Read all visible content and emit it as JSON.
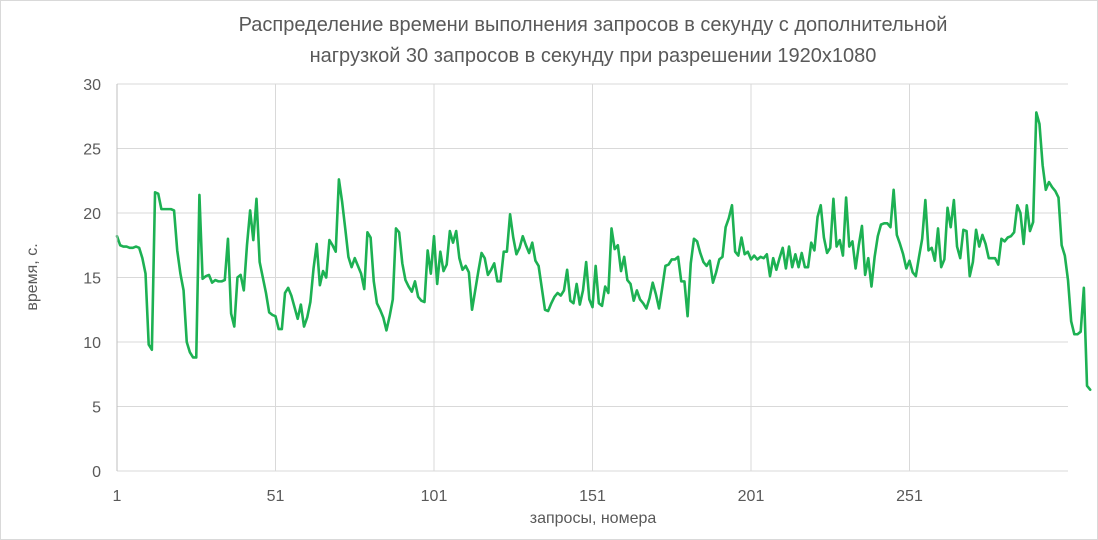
{
  "chart_data": {
    "type": "line",
    "title_line1": "Распределение времени выполнения запросов в секунду с дополнительной",
    "title_line2": "нагрузкой 30 запросов в секунду при разрешении 1920x1080",
    "xlabel": "запросы, номера",
    "ylabel": "время, с.",
    "xlim": [
      1,
      301
    ],
    "ylim": [
      0,
      30
    ],
    "x_ticks": [
      1,
      51,
      101,
      151,
      201,
      251
    ],
    "y_ticks": [
      0,
      5,
      10,
      15,
      20,
      25,
      30
    ],
    "grid": true,
    "colors": {
      "series": "#1db153",
      "grid": "#d9d9d9",
      "text": "#595959"
    },
    "series": [
      {
        "values": [
          18.2,
          17.5,
          17.4,
          17.4,
          17.3,
          17.3,
          17.4,
          17.3,
          16.5,
          15.3,
          9.8,
          9.4,
          21.6,
          21.5,
          20.3,
          20.3,
          20.3,
          20.3,
          20.2,
          17.1,
          15.3,
          14.0,
          10.0,
          9.2,
          8.8,
          8.8,
          21.4,
          14.9,
          15.1,
          15.2,
          14.6,
          14.8,
          14.7,
          14.7,
          14.8,
          18.0,
          12.2,
          11.2,
          15.0,
          15.2,
          14.0,
          17.5,
          20.2,
          17.9,
          21.1,
          16.2,
          15.0,
          13.8,
          12.3,
          12.1,
          12.0,
          11.0,
          11.0,
          13.8,
          14.2,
          13.6,
          12.7,
          11.8,
          12.9,
          11.2,
          11.9,
          13.1,
          15.7,
          17.6,
          14.4,
          15.5,
          15.0,
          17.9,
          17.5,
          17.0,
          22.6,
          20.9,
          18.8,
          16.6,
          15.8,
          16.5,
          15.9,
          15.3,
          14.1,
          18.5,
          18.1,
          14.7,
          13.0,
          12.5,
          11.9,
          10.9,
          12.0,
          13.3,
          18.8,
          18.5,
          16.1,
          14.8,
          14.3,
          13.9,
          14.7,
          13.5,
          13.2,
          13.1,
          17.1,
          15.3,
          18.2,
          14.5,
          17.0,
          15.5,
          16.0,
          18.6,
          17.7,
          18.6,
          16.5,
          15.6,
          15.9,
          15.4,
          12.5,
          14.0,
          15.5,
          16.9,
          16.5,
          15.2,
          15.6,
          16.1,
          14.7,
          14.7,
          17.0,
          17.0,
          19.9,
          18.1,
          16.8,
          17.3,
          18.2,
          17.5,
          16.9,
          17.7,
          16.3,
          15.9,
          14.2,
          12.5,
          12.4,
          13.0,
          13.5,
          13.8,
          13.6,
          14.0,
          15.6,
          13.2,
          13.0,
          14.5,
          12.9,
          14.0,
          16.2,
          13.3,
          12.7,
          15.9,
          13.0,
          12.8,
          14.3,
          13.8,
          18.8,
          17.2,
          17.5,
          15.5,
          16.6,
          14.8,
          14.5,
          13.2,
          14.0,
          13.3,
          13.0,
          12.6,
          13.4,
          14.6,
          13.7,
          12.6,
          14.2,
          15.9,
          16.0,
          16.4,
          16.4,
          16.6,
          14.7,
          14.7,
          12.0,
          16.1,
          18.0,
          17.8,
          16.9,
          16.2,
          15.9,
          16.3,
          14.6,
          15.4,
          16.4,
          16.6,
          18.9,
          19.6,
          20.6,
          17.0,
          16.7,
          18.1,
          16.8,
          17.0,
          16.4,
          16.7,
          16.4,
          16.6,
          16.5,
          16.8,
          15.1,
          16.5,
          15.6,
          16.5,
          17.3,
          15.7,
          17.4,
          15.8,
          16.8,
          15.8,
          16.9,
          15.8,
          15.8,
          17.7,
          17.1,
          19.7,
          20.6,
          18.1,
          16.9,
          17.3,
          21.1,
          17.4,
          17.9,
          16.7,
          21.2,
          17.4,
          17.8,
          15.7,
          17.5,
          19.0,
          15.2,
          16.5,
          14.3,
          16.6,
          18.2,
          19.1,
          19.2,
          19.2,
          18.9,
          21.8,
          18.3,
          17.6,
          16.8,
          15.7,
          16.3,
          15.4,
          15.1,
          16.6,
          18.0,
          21.0,
          17.1,
          17.3,
          16.3,
          18.8,
          15.8,
          16.4,
          20.4,
          18.9,
          21.0,
          17.4,
          16.5,
          18.7,
          18.6,
          15.1,
          16.2,
          18.7,
          17.4,
          18.3,
          17.6,
          16.5,
          16.5,
          16.5,
          16.0,
          18.0,
          17.8,
          18.1,
          18.2,
          18.5,
          20.6,
          20.0,
          17.6,
          20.6,
          18.6,
          19.3,
          27.8,
          26.9,
          23.7,
          21.8,
          22.4,
          22.0,
          21.7,
          21.2,
          17.5,
          16.7,
          14.8,
          11.6,
          10.6,
          10.6,
          10.8,
          14.2,
          6.6,
          6.3
        ]
      }
    ]
  }
}
